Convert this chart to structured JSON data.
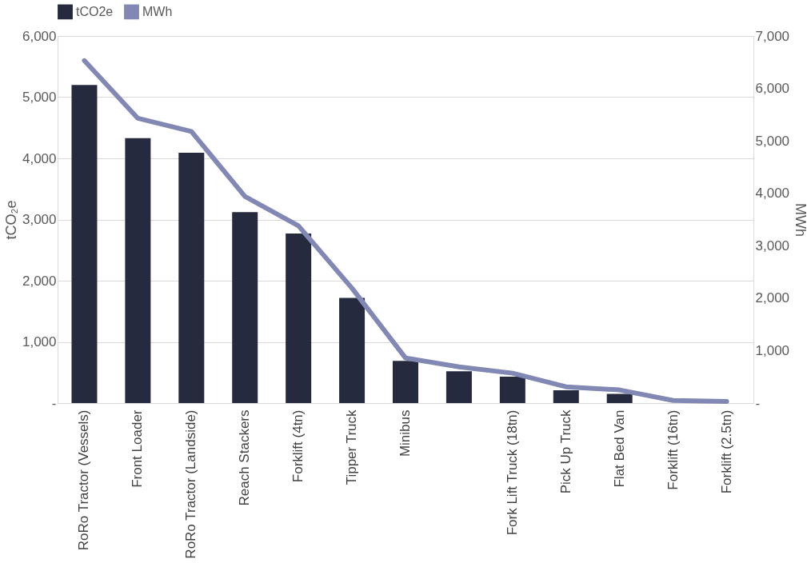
{
  "chart_data": {
    "type": "bar",
    "categories": [
      "RoRo Tractor (Vessels)",
      "Front Loader",
      "RoRo Tractor (Landside)",
      "Reach Stackers",
      "Forklift (4tn)",
      "Tipper Truck",
      "Minibus",
      null,
      "Fork Lift Truck (18tn)",
      "Pick Up Truck",
      "Flat Bed Van",
      "Forklift (16tn)",
      "Forklift (2.5tn)"
    ],
    "series": [
      {
        "name": "tCO2e",
        "color": "#262a3f",
        "values": [
          5200,
          4330,
          4090,
          3120,
          2770,
          1720,
          690,
          520,
          430,
          210,
          150,
          null,
          null
        ]
      },
      {
        "name": "MWh",
        "type": "line",
        "axis": "y2",
        "color": "#8288b4",
        "values": [
          6530,
          5430,
          5180,
          3940,
          3380,
          2190,
          860,
          690,
          570,
          310,
          250,
          50,
          30
        ]
      }
    ],
    "ylabel": "tCO₂e",
    "y2label": "MWh",
    "ylim": [
      0,
      6000
    ],
    "yticks": [
      {
        "value": 0,
        "label": "-"
      },
      {
        "value": 1000,
        "label": "1,000"
      },
      {
        "value": 2000,
        "label": "2,000"
      },
      {
        "value": 3000,
        "label": "3,000"
      },
      {
        "value": 4000,
        "label": "4,000"
      },
      {
        "value": 5000,
        "label": "5,000"
      },
      {
        "value": 6000,
        "label": "6,000"
      }
    ],
    "y2lim": [
      0,
      7000
    ],
    "y2ticks": [
      {
        "value": 0,
        "label": "-"
      },
      {
        "value": 1000,
        "label": "1,000"
      },
      {
        "value": 2000,
        "label": "2,000"
      },
      {
        "value": 3000,
        "label": "3,000"
      },
      {
        "value": 4000,
        "label": "4,000"
      },
      {
        "value": 5000,
        "label": "5,000"
      },
      {
        "value": 6000,
        "label": "6,000"
      },
      {
        "value": 7000,
        "label": "7,000"
      }
    ],
    "grid": "y",
    "legend": "top"
  }
}
